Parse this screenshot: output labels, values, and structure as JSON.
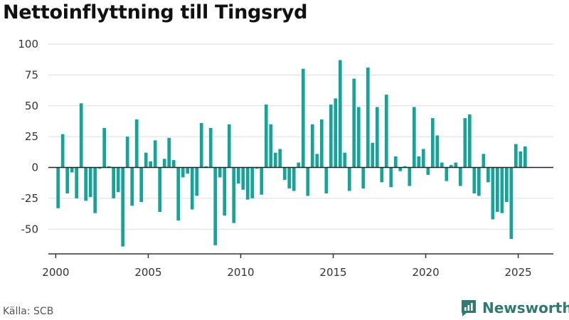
{
  "header": {
    "title": "Nettoinflyttning till Tingsryd"
  },
  "footer": {
    "source": "Källa: SCB",
    "brand": "Newsworthy"
  },
  "colors": {
    "bar": "#16a398",
    "zero_line": "#222222",
    "grid": "#dddddd",
    "axis": "#333333",
    "brand": "#2e7a73"
  },
  "chart_data": {
    "type": "bar",
    "title": "Nettoinflyttning till Tingsryd",
    "xlabel": "",
    "ylabel": "",
    "ylim": [
      -70,
      100
    ],
    "yticks": [
      100,
      75,
      50,
      25,
      0,
      -25,
      -50
    ],
    "xlim": [
      1999.6,
      2026.9
    ],
    "xticks": [
      2000,
      2005,
      2010,
      2015,
      2020,
      2025
    ],
    "grid": true,
    "legend": "none",
    "period": "quarter",
    "start": "2000-Q1",
    "values": [
      -33,
      27,
      -21,
      -4,
      -25,
      52,
      -27,
      -24,
      -37,
      -1,
      32,
      1,
      -25,
      -20,
      -64,
      25,
      -31,
      39,
      -28,
      12,
      5,
      22,
      -36,
      7,
      24,
      6,
      -43,
      -8,
      -5,
      -34,
      -23,
      36,
      1,
      32,
      -63,
      -8,
      -39,
      35,
      -45,
      -13,
      -18,
      -26,
      -25,
      -1,
      -22,
      51,
      35,
      12,
      15,
      -10,
      -17,
      -19,
      4,
      80,
      -23,
      35,
      11,
      39,
      -21,
      51,
      56,
      87,
      12,
      -19,
      72,
      49,
      -17,
      81,
      20,
      49,
      -12,
      59,
      -16,
      9,
      -3,
      1,
      -15,
      49,
      9,
      15,
      -6,
      40,
      26,
      4,
      -11,
      2,
      4,
      -15,
      40,
      43,
      -21,
      -23,
      11,
      -12,
      -42,
      -36,
      -37,
      -28,
      -58,
      19,
      13,
      17
    ]
  }
}
